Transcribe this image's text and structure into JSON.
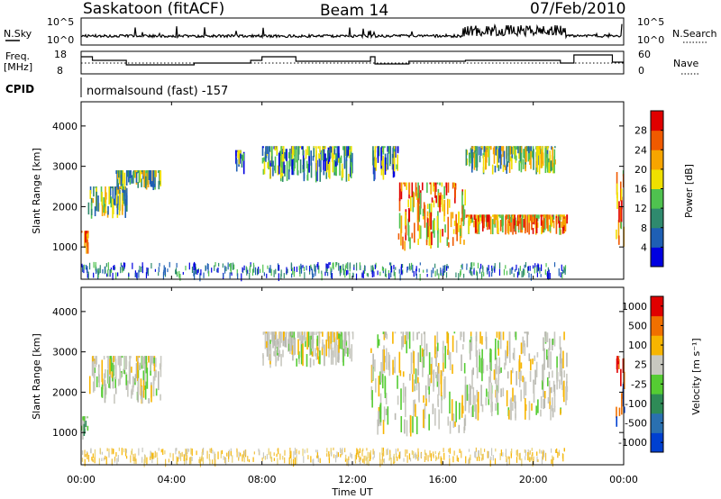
{
  "header": {
    "station": "Saskatoon (fitACF)",
    "beam": "Beam 14",
    "date": "07/Feb/2010"
  },
  "noise_panel": {
    "left_label": "N.Sky",
    "right_label": "N.Search",
    "left_ticks": [
      "10^5",
      "10^0"
    ],
    "right_ticks": [
      "10^5",
      "10^0"
    ]
  },
  "freq_panel": {
    "left_label_line1": "Freq.",
    "left_label_line2": "[MHz]",
    "left_ticks": [
      "18",
      "8"
    ],
    "right_ticks": [
      "60",
      "0"
    ],
    "right_label": "Nave"
  },
  "cpid": {
    "label": "CPID",
    "text": "normalsound (fast) -157"
  },
  "x_axis": {
    "ticks": [
      "00:00",
      "04:00",
      "08:00",
      "12:00",
      "16:00",
      "20:00",
      "00:00"
    ],
    "title": "Time UT"
  },
  "chart_data": [
    {
      "type": "heatmap",
      "name": "Power",
      "ylabel": "Slant Range [km]",
      "yticks": [
        "1000",
        "2000",
        "3000",
        "4000"
      ],
      "ylim": [
        200,
        4600
      ],
      "xlim_hours": [
        0,
        24
      ],
      "colorbar": {
        "label": "Power [dB]",
        "ticks": [
          "4",
          "8",
          "12",
          "16",
          "20",
          "24",
          "28"
        ],
        "colors": [
          "#0000e0",
          "#1e5fb4",
          "#2f8a6e",
          "#4fc24f",
          "#f0e000",
          "#f7a500",
          "#f05a00",
          "#e00000"
        ]
      },
      "echo_regions": [
        {
          "t_start": 0.0,
          "t_end": 0.3,
          "range_low": 800,
          "range_high": 1400,
          "level": "high"
        },
        {
          "t_start": 0.3,
          "t_end": 2.0,
          "range_low": 1700,
          "range_high": 2500,
          "level": "medium"
        },
        {
          "t_start": 1.5,
          "t_end": 3.5,
          "range_low": 2400,
          "range_high": 2900,
          "level": "medium"
        },
        {
          "t_start": 6.8,
          "t_end": 7.2,
          "range_low": 2800,
          "range_high": 3400,
          "level": "low"
        },
        {
          "t_start": 8.0,
          "t_end": 12.0,
          "range_low": 2600,
          "range_high": 3500,
          "level": "low"
        },
        {
          "t_start": 12.8,
          "t_end": 14.0,
          "range_low": 2600,
          "range_high": 3500,
          "level": "low"
        },
        {
          "t_start": 14.0,
          "t_end": 17.0,
          "range_low": 900,
          "range_high": 2600,
          "level": "high"
        },
        {
          "t_start": 17.0,
          "t_end": 21.5,
          "range_low": 1300,
          "range_high": 1800,
          "level": "high"
        },
        {
          "t_start": 17.0,
          "t_end": 21.0,
          "range_low": 2800,
          "range_high": 3500,
          "level": "medium"
        },
        {
          "t_start": 23.6,
          "t_end": 24.0,
          "range_low": 1000,
          "range_high": 2900,
          "level": "high"
        }
      ]
    },
    {
      "type": "heatmap",
      "name": "Velocity",
      "ylabel": "Slant Range [km]",
      "yticks": [
        "1000",
        "2000",
        "3000",
        "4000"
      ],
      "ylim": [
        200,
        4600
      ],
      "xlim_hours": [
        0,
        24
      ],
      "colorbar": {
        "label": "Velocity [m s⁻¹]",
        "ticks": [
          "1000",
          "500",
          "100",
          "25",
          "-25",
          "-100",
          "-500",
          "-1000"
        ],
        "colors": [
          "#0040d0",
          "#2a70b0",
          "#2e8b57",
          "#55cc33",
          "#c8c8c0",
          "#f7b500",
          "#f07000",
          "#e00000"
        ]
      },
      "echo_regions": [
        {
          "t_start": 0.0,
          "t_end": 0.3,
          "range_low": 800,
          "range_high": 1400,
          "level": "green"
        },
        {
          "t_start": 0.3,
          "t_end": 3.5,
          "range_low": 1700,
          "range_high": 2900,
          "level": "grey"
        },
        {
          "t_start": 8.0,
          "t_end": 12.0,
          "range_low": 2600,
          "range_high": 3500,
          "level": "grey"
        },
        {
          "t_start": 12.8,
          "t_end": 17.0,
          "range_low": 900,
          "range_high": 3500,
          "level": "grey"
        },
        {
          "t_start": 17.0,
          "t_end": 21.5,
          "range_low": 1300,
          "range_high": 3500,
          "level": "grey"
        },
        {
          "t_start": 23.6,
          "t_end": 24.0,
          "range_low": 1000,
          "range_high": 2900,
          "level": "mixed"
        }
      ]
    }
  ]
}
